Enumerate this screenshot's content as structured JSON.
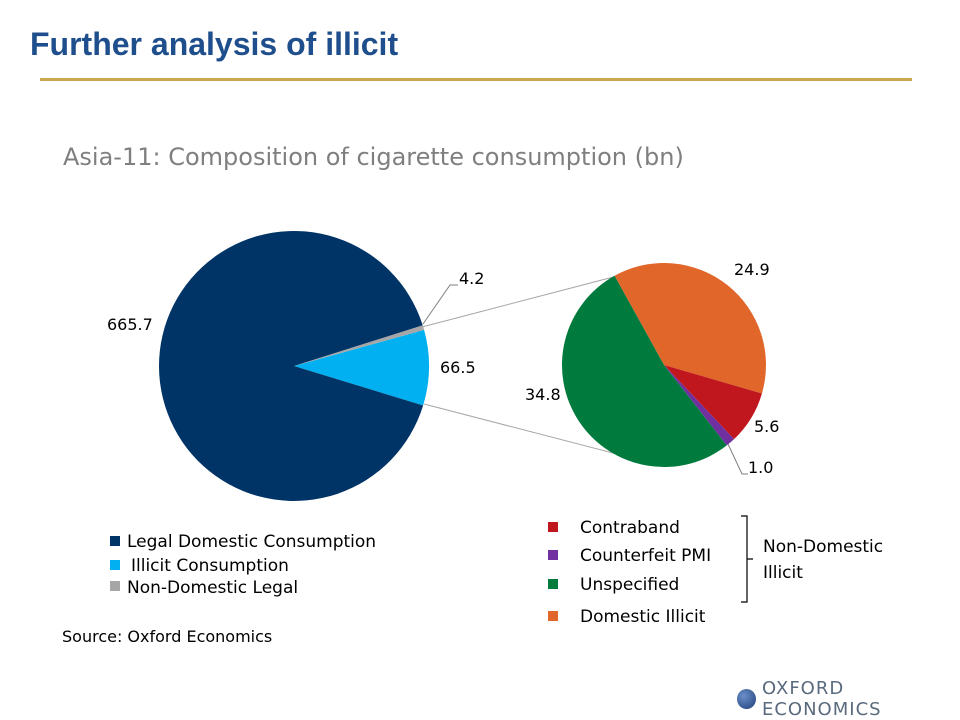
{
  "slide": {
    "title": "Further analysis of illicit",
    "source": "Source: Oxford Economics",
    "brand": "OXFORD ECONOMICS",
    "brand_icon": "globe-icon"
  },
  "chart_data": [
    {
      "type": "pie",
      "title": "Asia-11: Composition of cigarette consumption (bn)",
      "slices": [
        {
          "name": "Legal Domestic Consumption",
          "value": 665.7,
          "label": "665.7",
          "color": "#003366"
        },
        {
          "name": "Illicit Consumption",
          "value": 66.5,
          "label": "66.5",
          "color": "#00b0f0"
        },
        {
          "name": "Non-Domestic Legal",
          "value": 4.2,
          "label": "4.2",
          "color": "#a6a6a6"
        }
      ],
      "legend": [
        {
          "name": "Legal Domestic Consumption",
          "color": "#003366"
        },
        {
          "name": "Illicit Consumption",
          "color": "#00b0f0"
        },
        {
          "name": "Non-Domestic Legal",
          "color": "#a6a6a6"
        }
      ]
    },
    {
      "type": "pie",
      "title": "",
      "breakdown_of": "Illicit Consumption",
      "slices": [
        {
          "name": "Domestic Illicit",
          "value": 24.9,
          "label": "24.9",
          "color": "#e0662a"
        },
        {
          "name": "Contraband",
          "value": 5.6,
          "label": "5.6",
          "color": "#c0171e"
        },
        {
          "name": "Counterfeit PMI",
          "value": 1.0,
          "label": "1.0",
          "color": "#7030a0"
        },
        {
          "name": "Unspecified",
          "value": 34.8,
          "label": "34.8",
          "color": "#007a3d"
        }
      ],
      "legend": [
        {
          "name": "Contraband",
          "color": "#c0171e"
        },
        {
          "name": "Counterfeit PMI",
          "color": "#7030a0"
        },
        {
          "name": "Unspecified",
          "color": "#007a3d"
        },
        {
          "name": "Domestic Illicit",
          "color": "#e0662a"
        }
      ],
      "bracket_label_lines": [
        "Non-Domestic",
        "Illicit"
      ]
    }
  ]
}
